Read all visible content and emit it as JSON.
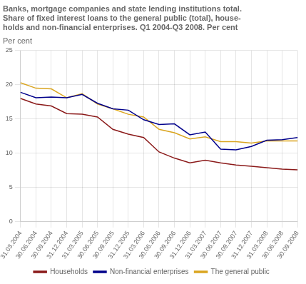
{
  "chart_data": {
    "type": "line",
    "title": [
      "Banks, mortgage companies and state lending institutions total.",
      "Share of fixed interest loans to the general public (total), house-",
      "holds and non-financial enterprises. Q1 2004-Q3 2008. Per cent"
    ],
    "y_label": "Per cent",
    "categories": [
      "31.03.2004",
      "30.06.2004",
      "30.09.2004",
      "31.12.2004",
      "31.03.2005",
      "30.06.2005",
      "30.09.2005",
      "31.12.2005",
      "31.03.2006",
      "30.06.2006",
      "30.09.2006",
      "31.12.2006",
      "31.03.2007",
      "30.06.2007",
      "30.09.2007",
      "31.12.2007",
      "31.03.2008",
      "30.06.2008",
      "30.09.2008"
    ],
    "series": [
      {
        "name": "Households",
        "color": "#8b1a1a",
        "values": [
          18.0,
          17.2,
          16.9,
          15.8,
          15.7,
          15.3,
          13.5,
          12.8,
          12.3,
          10.2,
          9.3,
          8.6,
          9.0,
          8.6,
          8.3,
          8.1,
          7.9,
          7.7,
          7.6
        ]
      },
      {
        "name": "Non-financial enterprises",
        "color": "#00008b",
        "values": [
          18.9,
          18.1,
          18.2,
          18.1,
          18.6,
          17.3,
          16.5,
          16.3,
          14.9,
          14.2,
          14.3,
          12.7,
          13.1,
          10.6,
          10.5,
          11.0,
          11.9,
          12.0,
          12.3
        ]
      },
      {
        "name": "The general public",
        "color": "#daa520",
        "values": [
          20.3,
          19.5,
          19.4,
          18.1,
          18.7,
          17.2,
          16.5,
          15.7,
          15.3,
          13.5,
          13.0,
          12.1,
          12.4,
          11.7,
          11.7,
          11.5,
          11.8,
          11.8,
          11.8
        ]
      }
    ],
    "ylim": [
      0,
      25
    ],
    "yticks": [
      0,
      5,
      10,
      15,
      20,
      25
    ],
    "grid": true,
    "legend": "bottom"
  }
}
